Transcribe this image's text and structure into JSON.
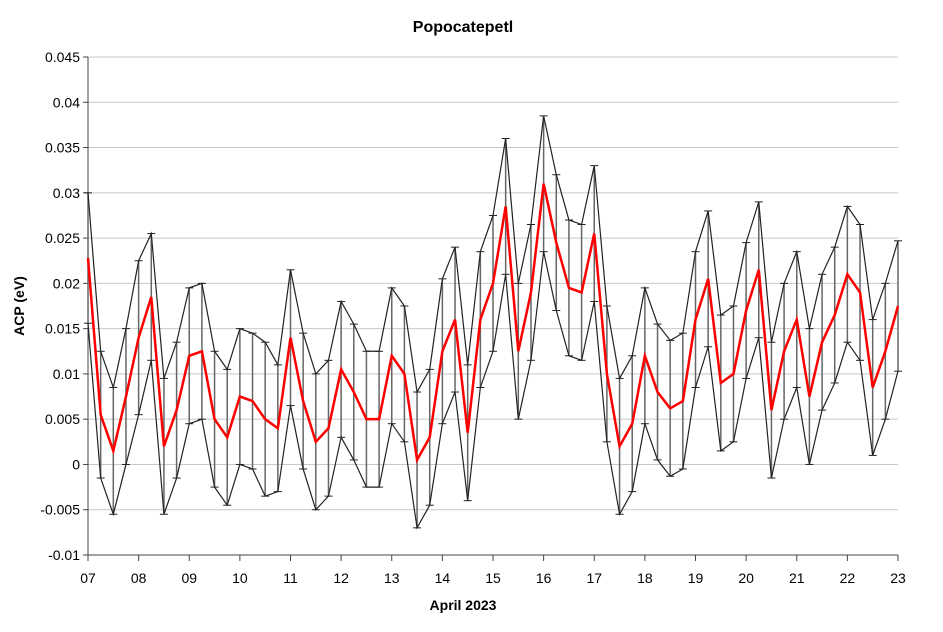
{
  "chart_data": {
    "type": "line-errorbar",
    "title": "Popocatepetl",
    "x_label": "April 2023",
    "y_label": "ACP (eV)",
    "xlim": [
      7,
      23
    ],
    "xticks": [
      {
        "value": 7,
        "label": "07"
      },
      {
        "value": 8,
        "label": "08"
      },
      {
        "value": 9,
        "label": "09"
      },
      10,
      11,
      12,
      13,
      14,
      15,
      16,
      17,
      18,
      19,
      20,
      21,
      22,
      23
    ],
    "ylim": [
      -0.01,
      0.045
    ],
    "yticks": [
      -0.01,
      -0.005,
      0,
      0.005,
      0.01,
      0.015,
      0.02,
      0.025,
      0.03,
      0.035,
      0.04,
      0.045
    ],
    "grid": true,
    "color": "#ff0000",
    "error_color": "#666666",
    "envelope_color": "#222222",
    "x": [
      7,
      7.25,
      7.5,
      7.75,
      8,
      8.25,
      8.5,
      8.75,
      9,
      9.25,
      9.5,
      9.75,
      10,
      10.25,
      10.5,
      10.75,
      11,
      11.25,
      11.5,
      11.75,
      12,
      12.25,
      12.5,
      12.75,
      13,
      13.25,
      13.5,
      13.75,
      14,
      14.25,
      14.5,
      14.75,
      15,
      15.25,
      15.5,
      15.75,
      16,
      16.25,
      16.5,
      16.75,
      17,
      17.25,
      17.5,
      17.75,
      18,
      18.25,
      18.5,
      18.75,
      19,
      19.25,
      19.5,
      19.75,
      20,
      20.25,
      20.5,
      20.75,
      21,
      21.25,
      21.5,
      21.75,
      22,
      22.25,
      22.5,
      22.75,
      23
    ],
    "values": [
      0.0228,
      0.0055,
      0.0015,
      0.0075,
      0.014,
      0.0185,
      0.002,
      0.006,
      0.012,
      0.0125,
      0.005,
      0.003,
      0.0075,
      0.007,
      0.005,
      0.004,
      0.014,
      0.007,
      0.0025,
      0.004,
      0.0105,
      0.008,
      0.005,
      0.005,
      0.012,
      0.01,
      0.0005,
      0.003,
      0.0125,
      0.016,
      0.0035,
      0.016,
      0.02,
      0.0285,
      0.0125,
      0.019,
      0.031,
      0.0245,
      0.0195,
      0.019,
      0.0255,
      0.01,
      0.002,
      0.0045,
      0.012,
      0.008,
      0.0062,
      0.007,
      0.016,
      0.0205,
      0.009,
      0.01,
      0.017,
      0.0215,
      0.006,
      0.0125,
      0.016,
      0.0075,
      0.0135,
      0.0165,
      0.021,
      0.019,
      0.0085,
      0.0125,
      0.0175
    ],
    "errors": [
      0.0072,
      0.007,
      0.007,
      0.0075,
      0.0085,
      0.007,
      0.0075,
      0.0075,
      0.0075,
      0.0075,
      0.0075,
      0.0075,
      0.0075,
      0.0075,
      0.0085,
      0.007,
      0.0075,
      0.0075,
      0.0075,
      0.0075,
      0.0075,
      0.0075,
      0.0075,
      0.0075,
      0.0075,
      0.0075,
      0.0075,
      0.0075,
      0.008,
      0.008,
      0.0075,
      0.0075,
      0.0075,
      0.0075,
      0.0075,
      0.0075,
      0.0075,
      0.0075,
      0.0075,
      0.0075,
      0.0075,
      0.0075,
      0.0075,
      0.0075,
      0.0075,
      0.0075,
      0.0075,
      0.0075,
      0.0075,
      0.0075,
      0.0075,
      0.0075,
      0.0075,
      0.0075,
      0.0075,
      0.0075,
      0.0075,
      0.0075,
      0.0075,
      0.0075,
      0.0075,
      0.0075,
      0.0075,
      0.0075,
      0.0072
    ]
  }
}
